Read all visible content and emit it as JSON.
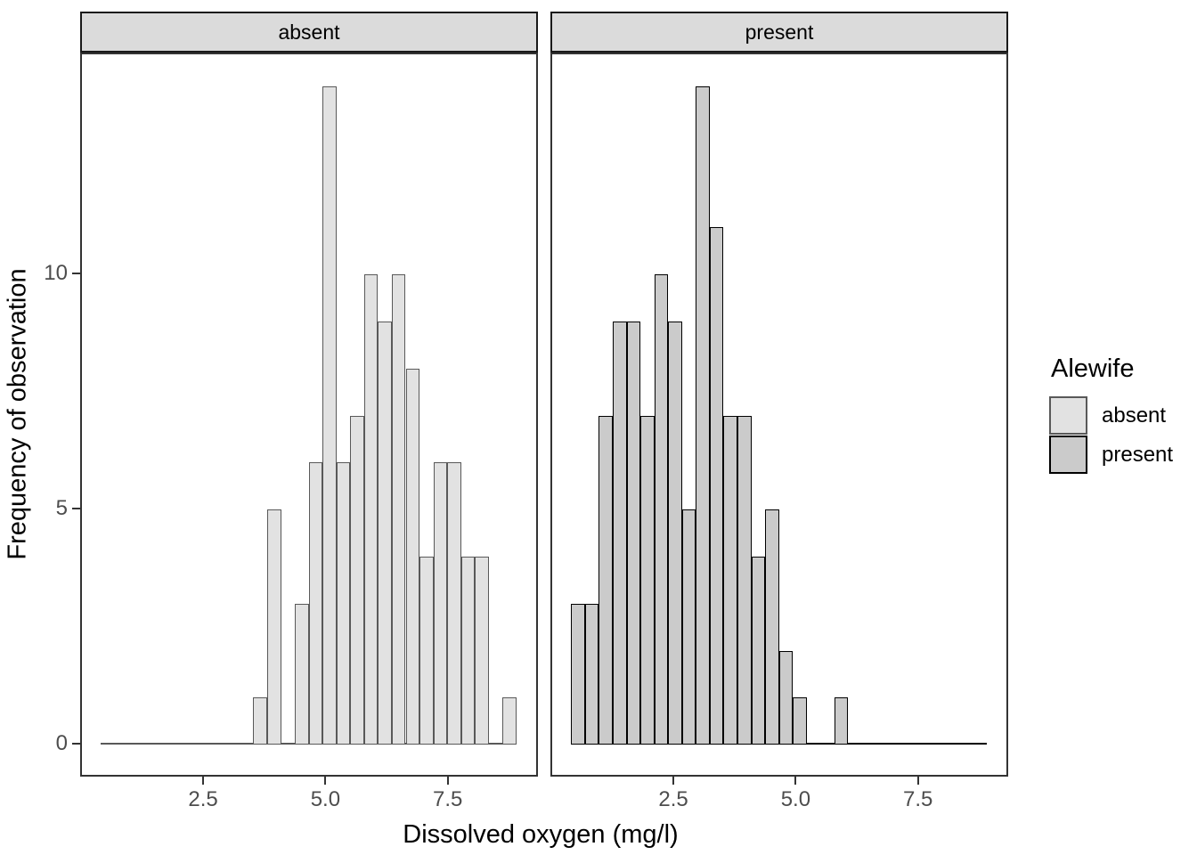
{
  "figure": {
    "x_axis_title": "Dissolved oxygen (mg/l)",
    "y_axis_title": "Frequency of observation",
    "background": "#FFFFFF"
  },
  "legend": {
    "title": "Alewife",
    "items": [
      {
        "label": "absent",
        "fill": "#E2E2E2",
        "border": "#595959"
      },
      {
        "label": "present",
        "fill": "#CBCBCB",
        "border": "#000000"
      }
    ]
  },
  "chart_data": {
    "type": "bar",
    "subtype": "faceted-histogram",
    "facet_variable": "Alewife",
    "xlabel": "Dissolved oxygen (mg/l)",
    "ylabel": "Frequency of observation",
    "bin_width": 0.2832,
    "x_domain": [
      -0.015,
      9.345
    ],
    "y_domain": [
      -0.7,
      14.7
    ],
    "baseline_range": [
      0.41,
      8.906
    ],
    "x_ticks": [
      {
        "value": 2.5,
        "label": "2.5"
      },
      {
        "value": 5.0,
        "label": "5.0"
      },
      {
        "value": 7.5,
        "label": "7.5"
      }
    ],
    "y_ticks": [
      {
        "value": 0,
        "label": "0"
      },
      {
        "value": 5,
        "label": "5"
      },
      {
        "value": 10,
        "label": "10"
      }
    ],
    "grid": "off",
    "legend_position": "right",
    "panels": [
      {
        "strip_label": "absent",
        "fill": "#E2E2E2",
        "border": "#595959",
        "border_px": 1,
        "first_bin": 3.5252,
        "counts": [
          1,
          5,
          0,
          3,
          6,
          14,
          6,
          7,
          10,
          9,
          10,
          8,
          4,
          6,
          6,
          4,
          4,
          0,
          1
        ]
      },
      {
        "strip_label": "present",
        "fill": "#CBCBCB",
        "border": "#000000",
        "border_px": 1.5,
        "first_bin": 0.41,
        "counts": [
          3,
          3,
          7,
          9,
          9,
          7,
          10,
          9,
          5,
          14,
          11,
          7,
          7,
          4,
          5,
          2,
          1,
          0,
          0,
          1
        ]
      }
    ]
  }
}
